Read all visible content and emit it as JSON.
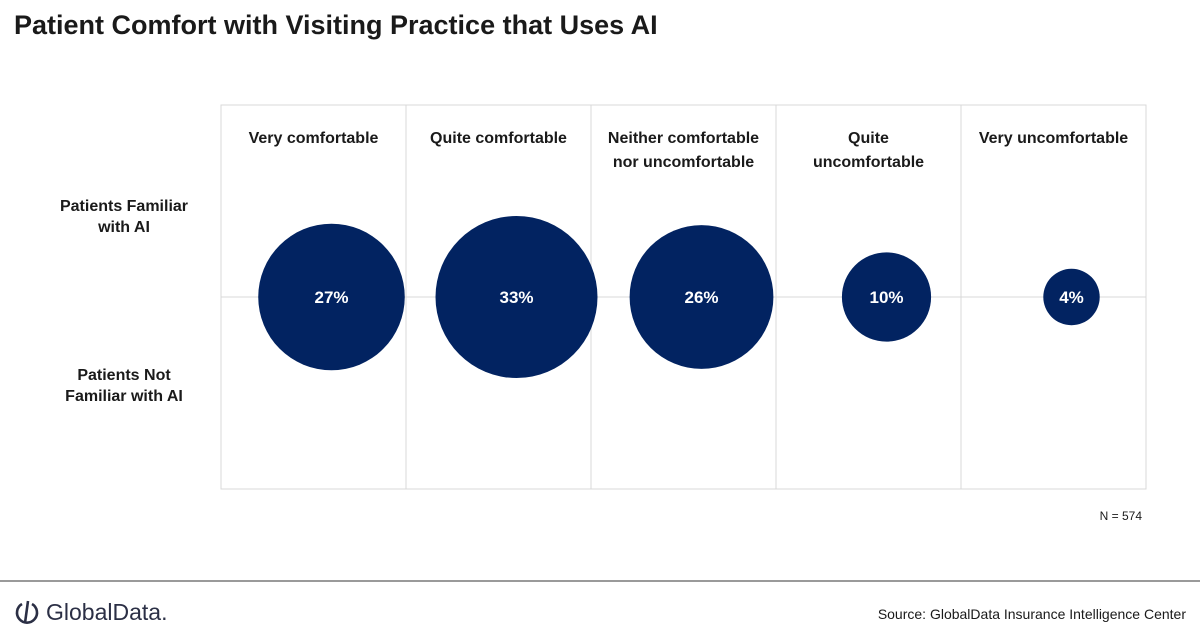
{
  "title": "Patient Comfort with Visiting Practice that Uses AI",
  "chart_data": {
    "type": "bubble",
    "title": "Patient Comfort with Visiting Practice that Uses AI",
    "categories": [
      [
        "Very comfortable"
      ],
      [
        "Quite comfortable"
      ],
      [
        "Neither comfortable",
        "nor uncomfortable"
      ],
      [
        "Quite",
        "uncomfortable"
      ],
      [
        "Very uncomfortable"
      ]
    ],
    "row_labels": [
      [
        "Patients Familiar",
        "with AI"
      ],
      [
        "Patients Not",
        "Familiar with AI"
      ]
    ],
    "values": [
      27,
      33,
      26,
      10,
      4
    ],
    "value_labels": [
      "27%",
      "33%",
      "26%",
      "10%",
      "4%"
    ],
    "color": "#022361",
    "grid": true
  },
  "note": "N = 574",
  "footer": {
    "logo": "GlobalData.",
    "source": "Source:  GlobalData Insurance Intelligence Center"
  }
}
